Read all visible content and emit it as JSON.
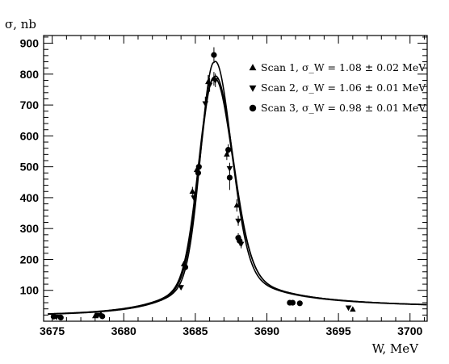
{
  "chart_data": {
    "type": "scatter",
    "ylabel": "σ, nb",
    "xlabel": "W, MeV",
    "xlim": [
      3674.4,
      3701.2
    ],
    "ylim": [
      0,
      925
    ],
    "x_ticks": [
      3675,
      3680,
      3685,
      3690,
      3695,
      3700
    ],
    "y_ticks": [
      100,
      200,
      300,
      400,
      500,
      600,
      700,
      800,
      900
    ],
    "grid": false,
    "legend_position": "top-right",
    "colors": {
      "marker": "#000000",
      "curve": "#000000",
      "frame": "#000000"
    },
    "series": [
      {
        "name": "Scan 1, σ_W = 1.08 ± 0.02 MeV",
        "marker": "triangle-up",
        "x": [
          3678.0,
          3678.4,
          3684.2,
          3684.8,
          3685.1,
          3685.9,
          3686.3,
          3687.2,
          3687.9,
          3688.1,
          3696.0
        ],
        "y": [
          17,
          22,
          185,
          420,
          490,
          775,
          785,
          540,
          375,
          265,
          38
        ],
        "err": [
          3,
          3,
          10,
          15,
          15,
          22,
          22,
          18,
          20,
          15,
          4
        ]
      },
      {
        "name": "Scan 2, σ_W = 1.06 ± 0.01 MeV",
        "marker": "triangle-down",
        "x": [
          3675.3,
          3678.2,
          3684.0,
          3684.9,
          3685.7,
          3686.0,
          3686.4,
          3687.4,
          3688.0,
          3688.2,
          3695.7
        ],
        "y": [
          14,
          20,
          110,
          400,
          705,
          765,
          780,
          495,
          325,
          250,
          44
        ],
        "err": [
          3,
          3,
          8,
          15,
          22,
          22,
          22,
          18,
          16,
          14,
          4
        ]
      },
      {
        "name": "Scan 3, σ_W = 0.98 ± 0.01 MeV",
        "marker": "circle",
        "x": [
          3675.1,
          3675.6,
          3678.5,
          3684.3,
          3685.2,
          3685.25,
          3686.3,
          3687.3,
          3687.4,
          3688.0,
          3688.1,
          3691.6,
          3691.8,
          3692.3
        ],
        "y": [
          15,
          12,
          16,
          175,
          480,
          500,
          862,
          555,
          465,
          270,
          260,
          60,
          60,
          58
        ],
        "err": [
          2,
          2,
          3,
          10,
          15,
          15,
          25,
          18,
          40,
          15,
          15,
          4,
          4,
          4
        ]
      }
    ],
    "curves": [
      {
        "name": "fit scan 1",
        "peak_x": 3686.25,
        "peak_y": 782,
        "width": 1.08
      },
      {
        "name": "fit scan 2",
        "peak_x": 3686.3,
        "peak_y": 790,
        "width": 1.06
      },
      {
        "name": "fit scan 3",
        "peak_x": 3686.3,
        "peak_y": 838,
        "width": 0.98
      }
    ]
  }
}
